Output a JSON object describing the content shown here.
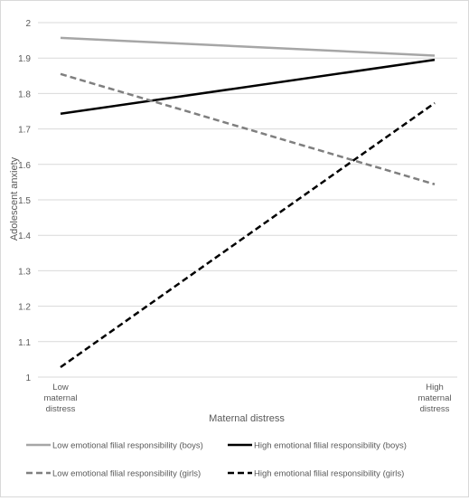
{
  "chart_data": {
    "type": "line",
    "title": "",
    "xlabel": "Maternal distress",
    "ylabel": "Adolescent anxiety",
    "ylim": [
      1,
      2
    ],
    "yticks": [
      "1",
      "1.1",
      "1.2",
      "1.3",
      "1.4",
      "1.5",
      "1.6",
      "1.7",
      "1.8",
      "1.9",
      "2"
    ],
    "categories": [
      [
        "Low",
        "maternal",
        "distress"
      ],
      [
        "High",
        "maternal",
        "distress"
      ]
    ],
    "grid": true,
    "legend_position": "bottom",
    "series": [
      {
        "name": "Low emotional filial responsibility (boys)",
        "values": [
          1.957,
          1.907
        ],
        "color": "#a6a6a6",
        "dash": "solid"
      },
      {
        "name": "High emotional filial responsibility (boys)",
        "values": [
          1.743,
          1.895
        ],
        "color": "#000000",
        "dash": "solid"
      },
      {
        "name": "Low emotional filial responsibility (girls)",
        "values": [
          1.855,
          1.544
        ],
        "color": "#7f7f7f",
        "dash": "dashed"
      },
      {
        "name": "High emotional filial responsibility (girls)",
        "values": [
          1.028,
          1.773
        ],
        "color": "#000000",
        "dash": "dashed"
      }
    ]
  }
}
